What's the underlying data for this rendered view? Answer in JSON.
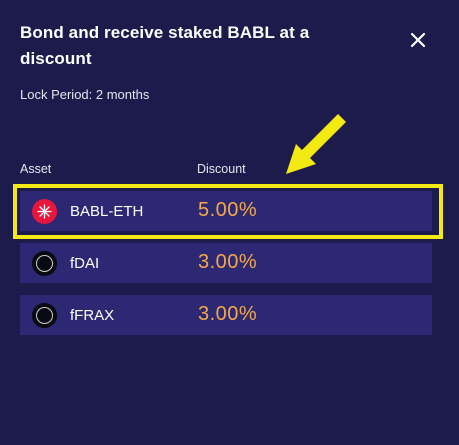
{
  "modal": {
    "title": "Bond and receive staked BABL at a discount",
    "lock_period": "Lock Period: 2 months"
  },
  "table": {
    "headers": {
      "asset": "Asset",
      "discount": "Discount"
    },
    "rows": [
      {
        "asset": "BABL-ETH",
        "discount": "5.00%",
        "icon": "babl-eth-token-icon",
        "highlighted": true
      },
      {
        "asset": "fDAI",
        "discount": "3.00%",
        "icon": "fdai-token-icon",
        "highlighted": false
      },
      {
        "asset": "fFRAX",
        "discount": "3.00%",
        "icon": "ffrax-token-icon",
        "highlighted": false
      }
    ]
  },
  "colors": {
    "background": "#1d1b4c",
    "row": "#2c2873",
    "discount_text": "#f5a84a",
    "highlight": "#f2ea12"
  }
}
